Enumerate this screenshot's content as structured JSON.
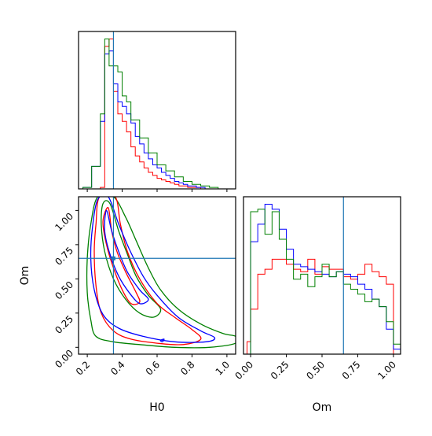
{
  "chart_data": {
    "type": "corner",
    "parameters": [
      "H0",
      "Om"
    ],
    "truths": {
      "H0": 0.35,
      "Om": 0.65
    },
    "colors": {
      "red": "#ff0000",
      "green": "#008000",
      "blue": "#0000ff",
      "truth": "#1f77b4"
    },
    "panels": [
      {
        "id": "hist_H0",
        "type": "histogram",
        "xlim": [
          0.15,
          1.05
        ],
        "x_ticks": [
          0.2,
          0.4,
          0.6,
          0.8,
          1.0
        ],
        "x_tick_labels": [
          "0.2",
          "0.4",
          "0.6",
          "0.8",
          "1.0"
        ],
        "bin_edges": [
          0.15,
          0.175,
          0.2,
          0.225,
          0.25,
          0.275,
          0.3,
          0.325,
          0.35,
          0.375,
          0.4,
          0.425,
          0.45,
          0.475,
          0.5,
          0.525,
          0.55,
          0.575,
          0.6,
          0.625,
          0.65,
          0.675,
          0.7,
          0.725,
          0.75,
          0.775,
          0.8,
          0.825,
          0.85,
          0.875,
          0.9,
          0.925,
          0.95,
          0.975,
          1.0,
          1.025,
          1.05
        ],
        "series": [
          {
            "color": "red",
            "values": [
              0,
              0,
              0,
              0,
              0,
              1,
              95,
              100,
              65,
              50,
              45,
              38,
              28,
              22,
              18,
              14,
              11,
              9,
              7,
              6,
              5,
              4,
              3,
              2,
              2,
              1,
              1,
              1,
              0,
              0,
              0,
              0,
              0,
              0,
              0,
              0
            ]
          },
          {
            "color": "blue",
            "values": [
              0,
              1,
              1,
              15,
              15,
              45,
              90,
              92,
              70,
              58,
              55,
              50,
              44,
              35,
              30,
              24,
              20,
              16,
              14,
              11,
              9,
              7,
              5,
              4,
              3,
              2,
              2,
              1,
              1,
              0,
              0,
              0,
              0,
              0,
              0,
              0
            ]
          },
          {
            "color": "green",
            "values": [
              0,
              1,
              1,
              15,
              15,
              50,
              100,
              82,
              82,
              78,
              62,
              58,
              46,
              46,
              34,
              34,
              24,
              24,
              16,
              16,
              12,
              12,
              8,
              8,
              5,
              5,
              3,
              3,
              2,
              2,
              1,
              1,
              0,
              0,
              0,
              0
            ]
          }
        ]
      },
      {
        "id": "hist_Om",
        "type": "histogram",
        "xlim": [
          -0.05,
          1.05
        ],
        "x_ticks": [
          0.0,
          0.25,
          0.5,
          0.75,
          1.0
        ],
        "x_tick_labels": [
          "0.00",
          "0.25",
          "0.50",
          "0.75",
          "1.00"
        ],
        "xlabel": "Om",
        "bin_edges": [
          -0.05,
          -0.025,
          0.0,
          0.025,
          0.05,
          0.075,
          0.1,
          0.125,
          0.15,
          0.175,
          0.2,
          0.225,
          0.25,
          0.275,
          0.3,
          0.325,
          0.35,
          0.375,
          0.4,
          0.425,
          0.45,
          0.475,
          0.5,
          0.525,
          0.55,
          0.575,
          0.6,
          0.625,
          0.65,
          0.675,
          0.7,
          0.725,
          0.75,
          0.775,
          0.8,
          0.825,
          0.85,
          0.875,
          0.9,
          0.925,
          0.95,
          0.975,
          1.0,
          1.025,
          1.05
        ],
        "series": [
          {
            "color": "red",
            "values": [
              0,
              5,
              18,
              18,
              32,
              32,
              34,
              34,
              38,
              38,
              38,
              38,
              36,
              36,
              34,
              34,
              33,
              33,
              38,
              38,
              32,
              32,
              35,
              35,
              34,
              34,
              34,
              34,
              31,
              31,
              30,
              30,
              32,
              32,
              36,
              36,
              33,
              33,
              31,
              31,
              28,
              28,
              0,
              0
            ]
          },
          {
            "color": "blue",
            "values": [
              0,
              0,
              45,
              45,
              52,
              52,
              60,
              60,
              58,
              58,
              50,
              50,
              42,
              42,
              36,
              36,
              35,
              35,
              34,
              34,
              33,
              33,
              32,
              32,
              31,
              31,
              33,
              33,
              32,
              32,
              31,
              31,
              28,
              28,
              26,
              26,
              22,
              22,
              19,
              19,
              10,
              10,
              2,
              2
            ]
          },
          {
            "color": "green",
            "values": [
              0,
              0,
              57,
              57,
              58,
              58,
              48,
              48,
              57,
              57,
              46,
              46,
              38,
              38,
              30,
              30,
              32,
              32,
              27,
              27,
              31,
              31,
              36,
              36,
              31,
              31,
              33,
              33,
              28,
              28,
              26,
              26,
              24,
              24,
              21,
              21,
              22,
              22,
              19,
              19,
              13,
              13,
              4,
              4
            ]
          }
        ]
      },
      {
        "id": "contour_H0_Om",
        "type": "contour",
        "xlim": [
          0.15,
          1.05
        ],
        "ylim": [
          -0.05,
          1.1
        ],
        "x_ticks": [
          0.2,
          0.4,
          0.6,
          0.8,
          1.0
        ],
        "x_tick_labels": [
          "0.2",
          "0.4",
          "0.6",
          "0.8",
          "1.0"
        ],
        "y_ticks": [
          0.0,
          0.25,
          0.5,
          0.75,
          1.0
        ],
        "y_tick_labels": [
          "0.00",
          "0.25",
          "0.50",
          "0.75",
          "1.00"
        ],
        "xlabel": "H0",
        "ylabel": "Om",
        "series": [
          {
            "color": "green",
            "contours": [
              [
                [
                  0.35,
                  1.1
                ],
                [
                  0.42,
                  0.95
                ],
                [
                  0.48,
                  0.78
                ],
                [
                  0.55,
                  0.58
                ],
                [
                  0.62,
                  0.42
                ],
                [
                  0.72,
                  0.28
                ],
                [
                  0.85,
                  0.17
                ],
                [
                  0.98,
                  0.1
                ],
                [
                  1.05,
                  0.08
                ],
                [
                  1.05,
                  0.03
                ],
                [
                  0.9,
                  0.0
                ],
                [
                  0.7,
                  0.0
                ],
                [
                  0.5,
                  0.02
                ],
                [
                  0.35,
                  0.04
                ],
                [
                  0.25,
                  0.08
                ],
                [
                  0.22,
                  0.2
                ],
                [
                  0.2,
                  0.4
                ],
                [
                  0.2,
                  0.65
                ],
                [
                  0.22,
                  0.9
                ],
                [
                  0.26,
                  1.1
                ]
              ],
              [
                [
                  0.33,
                  1.05
                ],
                [
                  0.38,
                  0.85
                ],
                [
                  0.43,
                  0.68
                ],
                [
                  0.48,
                  0.52
                ],
                [
                  0.55,
                  0.38
                ],
                [
                  0.62,
                  0.28
                ],
                [
                  0.58,
                  0.22
                ],
                [
                  0.5,
                  0.25
                ],
                [
                  0.42,
                  0.35
                ],
                [
                  0.35,
                  0.5
                ],
                [
                  0.3,
                  0.7
                ],
                [
                  0.28,
                  0.9
                ],
                [
                  0.29,
                  1.05
                ]
              ]
            ]
          },
          {
            "color": "red",
            "contours": [
              [
                [
                  0.36,
                  1.1
                ],
                [
                  0.39,
                  0.9
                ],
                [
                  0.43,
                  0.7
                ],
                [
                  0.5,
                  0.5
                ],
                [
                  0.6,
                  0.32
                ],
                [
                  0.7,
                  0.22
                ],
                [
                  0.8,
                  0.13
                ],
                [
                  0.85,
                  0.06
                ],
                [
                  0.75,
                  0.02
                ],
                [
                  0.6,
                  0.03
                ],
                [
                  0.45,
                  0.06
                ],
                [
                  0.35,
                  0.12
                ],
                [
                  0.28,
                  0.25
                ],
                [
                  0.25,
                  0.45
                ],
                [
                  0.24,
                  0.7
                ],
                [
                  0.25,
                  0.9
                ],
                [
                  0.27,
                  1.1
                ]
              ],
              [
                [
                  0.32,
                  1.02
                ],
                [
                  0.34,
                  0.85
                ],
                [
                  0.37,
                  0.7
                ],
                [
                  0.42,
                  0.55
                ],
                [
                  0.48,
                  0.4
                ],
                [
                  0.5,
                  0.33
                ],
                [
                  0.45,
                  0.32
                ],
                [
                  0.4,
                  0.42
                ],
                [
                  0.35,
                  0.58
                ],
                [
                  0.31,
                  0.75
                ],
                [
                  0.29,
                  0.92
                ]
              ]
            ]
          },
          {
            "color": "blue",
            "contours": [
              [
                [
                  0.32,
                  1.1
                ],
                [
                  0.38,
                  0.9
                ],
                [
                  0.44,
                  0.72
                ],
                [
                  0.52,
                  0.52
                ],
                [
                  0.6,
                  0.38
                ],
                [
                  0.72,
                  0.22
                ],
                [
                  0.85,
                  0.12
                ],
                [
                  0.93,
                  0.07
                ],
                [
                  0.88,
                  0.04
                ],
                [
                  0.7,
                  0.04
                ],
                [
                  0.52,
                  0.08
                ],
                [
                  0.38,
                  0.14
                ],
                [
                  0.29,
                  0.24
                ],
                [
                  0.24,
                  0.42
                ],
                [
                  0.22,
                  0.65
                ],
                [
                  0.23,
                  0.88
                ],
                [
                  0.26,
                  1.08
                ]
              ],
              [
                [
                  0.31,
                  1.0
                ],
                [
                  0.34,
                  0.85
                ],
                [
                  0.38,
                  0.7
                ],
                [
                  0.43,
                  0.55
                ],
                [
                  0.5,
                  0.42
                ],
                [
                  0.55,
                  0.35
                ],
                [
                  0.5,
                  0.32
                ],
                [
                  0.44,
                  0.4
                ],
                [
                  0.38,
                  0.52
                ],
                [
                  0.33,
                  0.68
                ],
                [
                  0.3,
                  0.85
                ]
              ],
              [
                [
                  0.62,
                  0.05
                ],
                [
                  0.64,
                  0.06
                ],
                [
                  0.63,
                  0.04
                ]
              ]
            ]
          }
        ]
      }
    ]
  }
}
